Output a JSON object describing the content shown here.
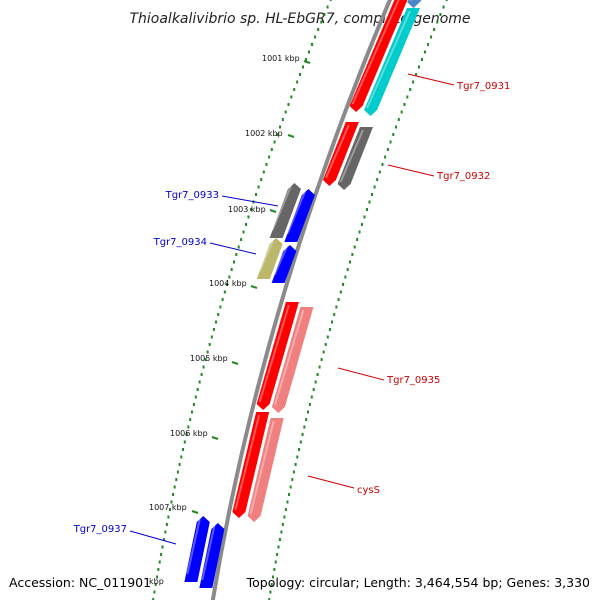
{
  "title": "Thioalkalivibrio sp. HL-EbGR7, complete genome",
  "footer": {
    "accession": "Accession: NC_011901",
    "topology": "Topology: circular; Length: 3,464,554 bp; Genes: 3,330"
  },
  "colors": {
    "backbone": "#8a8a8a",
    "tick": "#1f8a1f",
    "forward_label": "#0000cc",
    "reverse_label": "#cc0000",
    "red": "#ff0000",
    "blue": "#0000ff",
    "cyan": "#00cccc",
    "steelblue": "#4a86c8",
    "gray": "#666666",
    "pink": "#f08080",
    "khaki": "#bdb76b"
  },
  "kbp_labels": [
    "1001 kbp",
    "1002 kbp",
    "1003 kbp",
    "1004 kbp",
    "1005 kbp",
    "1006 kbp",
    "1007 kbp",
    "kbp"
  ],
  "gene_labels": [
    {
      "id": "Tgr7_0931",
      "strand": "reverse"
    },
    {
      "id": "Tgr7_0932",
      "strand": "reverse"
    },
    {
      "id": "Tgr7_0933",
      "strand": "forward"
    },
    {
      "id": "Tgr7_0934",
      "strand": "forward"
    },
    {
      "id": "Tgr7_0935",
      "strand": "reverse"
    },
    {
      "id": "cysS",
      "strand": "reverse"
    },
    {
      "id": "Tgr7_0937",
      "strand": "forward"
    }
  ],
  "genes": [
    {
      "strand": "reverse",
      "track": "outer",
      "color": "red"
    },
    {
      "strand": "reverse",
      "track": "outer2",
      "color": "steelblue"
    },
    {
      "strand": "reverse",
      "track": "outer2",
      "color": "cyan"
    },
    {
      "strand": "reverse",
      "track": "outer",
      "color": "red"
    },
    {
      "strand": "reverse",
      "track": "outer2",
      "color": "gray"
    },
    {
      "strand": "forward",
      "track": "inner",
      "color": "gray"
    },
    {
      "strand": "forward",
      "track": "inner1",
      "color": "blue"
    },
    {
      "strand": "forward",
      "track": "inner",
      "color": "khaki"
    },
    {
      "strand": "forward",
      "track": "inner1",
      "color": "blue"
    },
    {
      "strand": "reverse",
      "track": "outer",
      "color": "red"
    },
    {
      "strand": "reverse",
      "track": "outer2",
      "color": "pink"
    },
    {
      "strand": "reverse",
      "track": "outer",
      "color": "red"
    },
    {
      "strand": "reverse",
      "track": "outer2",
      "color": "pink"
    },
    {
      "strand": "forward",
      "track": "inner",
      "color": "blue"
    },
    {
      "strand": "forward",
      "track": "inner1",
      "color": "blue"
    }
  ]
}
